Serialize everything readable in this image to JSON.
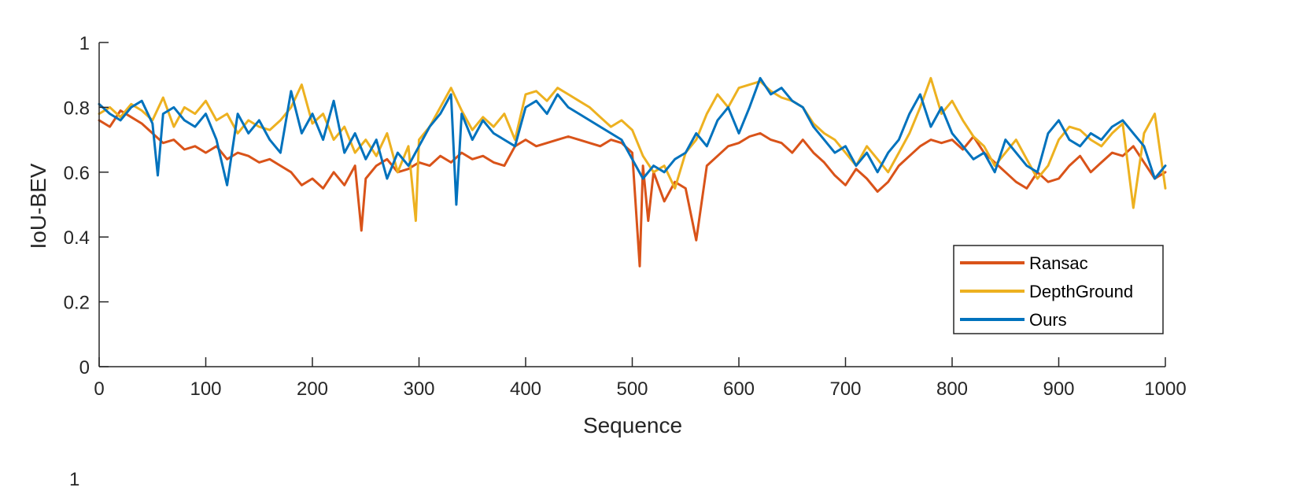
{
  "chart_data": {
    "type": "line",
    "title": "",
    "xlabel": "Sequence",
    "ylabel": "IoU-BEV",
    "xlim": [
      0,
      1000
    ],
    "ylim": [
      0,
      1
    ],
    "xticks": [
      0,
      100,
      200,
      300,
      400,
      500,
      600,
      700,
      800,
      900,
      1000
    ],
    "yticks": [
      0,
      0.2,
      0.4,
      0.6,
      0.8,
      1
    ],
    "grid": false,
    "legend_position": "lower-right",
    "series": [
      {
        "name": "Ransac",
        "color": "#D95319",
        "x": [
          0,
          10,
          20,
          30,
          40,
          50,
          60,
          70,
          80,
          90,
          100,
          110,
          120,
          130,
          140,
          150,
          160,
          170,
          180,
          190,
          200,
          210,
          220,
          230,
          240,
          246,
          250,
          260,
          270,
          280,
          290,
          300,
          310,
          320,
          330,
          340,
          350,
          360,
          370,
          380,
          390,
          400,
          410,
          420,
          430,
          440,
          450,
          460,
          470,
          480,
          490,
          500,
          507,
          510,
          515,
          520,
          530,
          540,
          550,
          560,
          570,
          580,
          590,
          600,
          610,
          620,
          630,
          640,
          650,
          660,
          670,
          680,
          690,
          700,
          710,
          720,
          730,
          740,
          750,
          760,
          770,
          780,
          790,
          800,
          810,
          820,
          830,
          840,
          850,
          860,
          870,
          880,
          890,
          900,
          910,
          920,
          930,
          940,
          950,
          960,
          970,
          980,
          990,
          1000
        ],
        "values": [
          0.76,
          0.74,
          0.79,
          0.77,
          0.75,
          0.72,
          0.69,
          0.7,
          0.67,
          0.68,
          0.66,
          0.68,
          0.64,
          0.66,
          0.65,
          0.63,
          0.64,
          0.62,
          0.6,
          0.56,
          0.58,
          0.55,
          0.6,
          0.56,
          0.62,
          0.42,
          0.58,
          0.62,
          0.64,
          0.6,
          0.61,
          0.63,
          0.62,
          0.65,
          0.63,
          0.66,
          0.64,
          0.65,
          0.63,
          0.62,
          0.68,
          0.7,
          0.68,
          0.69,
          0.7,
          0.71,
          0.7,
          0.69,
          0.68,
          0.7,
          0.69,
          0.66,
          0.31,
          0.62,
          0.45,
          0.6,
          0.51,
          0.57,
          0.55,
          0.39,
          0.62,
          0.65,
          0.68,
          0.69,
          0.71,
          0.72,
          0.7,
          0.69,
          0.66,
          0.7,
          0.66,
          0.63,
          0.59,
          0.56,
          0.61,
          0.58,
          0.54,
          0.57,
          0.62,
          0.65,
          0.68,
          0.7,
          0.69,
          0.7,
          0.67,
          0.71,
          0.66,
          0.63,
          0.6,
          0.57,
          0.55,
          0.6,
          0.57,
          0.58,
          0.62,
          0.65,
          0.6,
          0.63,
          0.66,
          0.65,
          0.68,
          0.63,
          0.58,
          0.6
        ]
      },
      {
        "name": "DepthGround",
        "color": "#EDB120",
        "x": [
          0,
          10,
          20,
          30,
          40,
          50,
          60,
          70,
          80,
          90,
          100,
          110,
          120,
          130,
          140,
          150,
          160,
          170,
          180,
          190,
          200,
          210,
          220,
          230,
          240,
          250,
          260,
          270,
          280,
          290,
          297,
          300,
          310,
          320,
          330,
          340,
          350,
          360,
          370,
          380,
          390,
          400,
          410,
          420,
          430,
          440,
          450,
          460,
          470,
          480,
          490,
          500,
          510,
          520,
          530,
          540,
          550,
          560,
          570,
          580,
          590,
          600,
          610,
          620,
          630,
          640,
          650,
          660,
          670,
          680,
          690,
          700,
          710,
          720,
          730,
          740,
          750,
          760,
          770,
          780,
          790,
          800,
          810,
          820,
          830,
          840,
          850,
          860,
          870,
          880,
          890,
          900,
          910,
          920,
          930,
          940,
          950,
          960,
          970,
          980,
          990,
          1000
        ],
        "values": [
          0.78,
          0.8,
          0.77,
          0.81,
          0.79,
          0.76,
          0.83,
          0.74,
          0.8,
          0.78,
          0.82,
          0.76,
          0.78,
          0.72,
          0.76,
          0.74,
          0.73,
          0.76,
          0.8,
          0.87,
          0.75,
          0.78,
          0.7,
          0.74,
          0.66,
          0.7,
          0.65,
          0.72,
          0.6,
          0.68,
          0.45,
          0.7,
          0.74,
          0.8,
          0.86,
          0.79,
          0.73,
          0.77,
          0.74,
          0.78,
          0.7,
          0.84,
          0.85,
          0.82,
          0.86,
          0.84,
          0.82,
          0.8,
          0.77,
          0.74,
          0.76,
          0.73,
          0.65,
          0.6,
          0.62,
          0.55,
          0.66,
          0.7,
          0.78,
          0.84,
          0.8,
          0.86,
          0.87,
          0.88,
          0.85,
          0.83,
          0.82,
          0.8,
          0.75,
          0.72,
          0.7,
          0.66,
          0.62,
          0.68,
          0.64,
          0.6,
          0.66,
          0.72,
          0.8,
          0.89,
          0.78,
          0.82,
          0.76,
          0.71,
          0.68,
          0.62,
          0.66,
          0.7,
          0.64,
          0.58,
          0.62,
          0.7,
          0.74,
          0.73,
          0.7,
          0.68,
          0.72,
          0.75,
          0.49,
          0.72,
          0.78,
          0.55
        ]
      },
      {
        "name": "Ours",
        "color": "#0072BD",
        "x": [
          0,
          10,
          20,
          30,
          40,
          50,
          55,
          60,
          70,
          80,
          90,
          100,
          110,
          120,
          130,
          140,
          150,
          160,
          170,
          180,
          190,
          200,
          210,
          220,
          230,
          240,
          250,
          260,
          270,
          280,
          290,
          300,
          310,
          320,
          330,
          335,
          340,
          350,
          360,
          370,
          380,
          390,
          400,
          410,
          420,
          430,
          440,
          450,
          460,
          470,
          480,
          490,
          500,
          510,
          520,
          530,
          540,
          550,
          560,
          570,
          580,
          590,
          600,
          610,
          620,
          630,
          640,
          650,
          660,
          670,
          680,
          690,
          700,
          710,
          720,
          730,
          740,
          750,
          760,
          770,
          780,
          790,
          800,
          810,
          820,
          830,
          840,
          850,
          860,
          870,
          880,
          890,
          900,
          910,
          920,
          930,
          940,
          950,
          960,
          970,
          980,
          990,
          1000
        ],
        "values": [
          0.81,
          0.78,
          0.76,
          0.8,
          0.82,
          0.75,
          0.59,
          0.78,
          0.8,
          0.76,
          0.74,
          0.78,
          0.7,
          0.56,
          0.78,
          0.72,
          0.76,
          0.7,
          0.66,
          0.85,
          0.72,
          0.78,
          0.7,
          0.82,
          0.66,
          0.72,
          0.64,
          0.7,
          0.58,
          0.66,
          0.62,
          0.68,
          0.74,
          0.78,
          0.84,
          0.5,
          0.78,
          0.7,
          0.76,
          0.72,
          0.7,
          0.68,
          0.8,
          0.82,
          0.78,
          0.84,
          0.8,
          0.78,
          0.76,
          0.74,
          0.72,
          0.7,
          0.64,
          0.58,
          0.62,
          0.6,
          0.64,
          0.66,
          0.72,
          0.68,
          0.76,
          0.8,
          0.72,
          0.8,
          0.89,
          0.84,
          0.86,
          0.82,
          0.8,
          0.74,
          0.7,
          0.66,
          0.68,
          0.62,
          0.66,
          0.6,
          0.66,
          0.7,
          0.78,
          0.84,
          0.74,
          0.8,
          0.72,
          0.68,
          0.64,
          0.66,
          0.6,
          0.7,
          0.66,
          0.62,
          0.6,
          0.72,
          0.76,
          0.7,
          0.68,
          0.72,
          0.7,
          0.74,
          0.76,
          0.72,
          0.68,
          0.58,
          0.62
        ]
      }
    ]
  },
  "extra": {
    "bottom_clipped_tick": "1"
  }
}
